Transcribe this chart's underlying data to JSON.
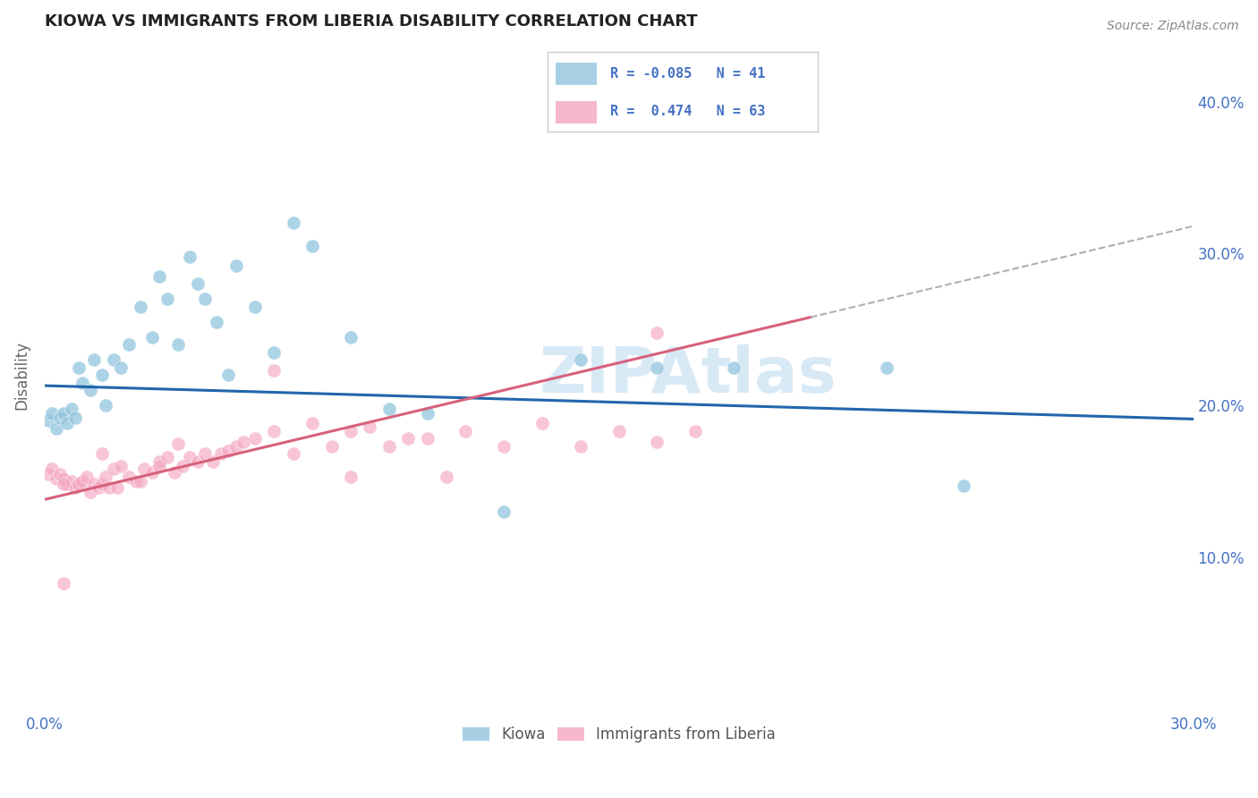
{
  "title": "KIOWA VS IMMIGRANTS FROM LIBERIA DISABILITY CORRELATION CHART",
  "source": "Source: ZipAtlas.com",
  "ylabel": "Disability",
  "xlim": [
    0.0,
    0.3
  ],
  "ylim": [
    0.0,
    0.44
  ],
  "y_ticks_right": [
    0.1,
    0.2,
    0.3,
    0.4
  ],
  "kiowa_color": "#92c5de",
  "liberia_color": "#f4a6c0",
  "kiowa_line_color": "#2166ac",
  "liberia_line_color": "#d6617d",
  "grid_color": "#cccccc",
  "background_color": "#ffffff",
  "watermark": "ZIPAtlas",
  "kiowa_line_x0": 0.0,
  "kiowa_line_y0": 0.213,
  "kiowa_line_x1": 0.3,
  "kiowa_line_y1": 0.191,
  "liberia_line_x0": 0.0,
  "liberia_line_y0": 0.138,
  "liberia_line_x1": 0.2,
  "liberia_line_y1": 0.258,
  "dashed_line_x0": 0.2,
  "dashed_line_y0": 0.258,
  "dashed_line_x1": 0.3,
  "dashed_line_y1": 0.318,
  "kiowa_points_x": [
    0.001,
    0.002,
    0.003,
    0.004,
    0.005,
    0.006,
    0.007,
    0.008,
    0.009,
    0.01,
    0.012,
    0.013,
    0.015,
    0.016,
    0.018,
    0.02,
    0.022,
    0.025,
    0.028,
    0.03,
    0.032,
    0.035,
    0.038,
    0.04,
    0.042,
    0.045,
    0.048,
    0.05,
    0.06,
    0.065,
    0.08,
    0.1,
    0.14,
    0.16,
    0.18,
    0.22,
    0.24,
    0.055,
    0.07,
    0.09,
    0.12
  ],
  "kiowa_points_y": [
    0.19,
    0.195,
    0.185,
    0.192,
    0.195,
    0.188,
    0.198,
    0.192,
    0.225,
    0.215,
    0.21,
    0.23,
    0.22,
    0.2,
    0.23,
    0.225,
    0.24,
    0.265,
    0.245,
    0.285,
    0.27,
    0.24,
    0.298,
    0.28,
    0.27,
    0.255,
    0.22,
    0.292,
    0.235,
    0.32,
    0.245,
    0.195,
    0.23,
    0.225,
    0.225,
    0.225,
    0.147,
    0.265,
    0.305,
    0.198,
    0.13
  ],
  "liberia_points_x": [
    0.001,
    0.002,
    0.003,
    0.004,
    0.005,
    0.006,
    0.007,
    0.008,
    0.009,
    0.01,
    0.011,
    0.012,
    0.013,
    0.014,
    0.015,
    0.016,
    0.017,
    0.018,
    0.019,
    0.02,
    0.022,
    0.024,
    0.026,
    0.028,
    0.03,
    0.032,
    0.034,
    0.036,
    0.038,
    0.04,
    0.042,
    0.044,
    0.046,
    0.048,
    0.05,
    0.052,
    0.055,
    0.06,
    0.065,
    0.07,
    0.075,
    0.08,
    0.085,
    0.09,
    0.095,
    0.1,
    0.11,
    0.12,
    0.13,
    0.14,
    0.15,
    0.16,
    0.17,
    0.005,
    0.03,
    0.06,
    0.08,
    0.105,
    0.16,
    0.005,
    0.025,
    0.035,
    0.015
  ],
  "liberia_points_y": [
    0.155,
    0.158,
    0.152,
    0.155,
    0.152,
    0.148,
    0.15,
    0.146,
    0.148,
    0.15,
    0.153,
    0.143,
    0.148,
    0.146,
    0.148,
    0.153,
    0.146,
    0.158,
    0.146,
    0.16,
    0.153,
    0.15,
    0.158,
    0.156,
    0.163,
    0.166,
    0.156,
    0.16,
    0.166,
    0.163,
    0.168,
    0.163,
    0.168,
    0.17,
    0.173,
    0.176,
    0.178,
    0.183,
    0.168,
    0.188,
    0.173,
    0.183,
    0.186,
    0.173,
    0.178,
    0.178,
    0.183,
    0.173,
    0.188,
    0.173,
    0.183,
    0.176,
    0.183,
    0.148,
    0.16,
    0.223,
    0.153,
    0.153,
    0.248,
    0.083,
    0.15,
    0.175,
    0.168
  ]
}
